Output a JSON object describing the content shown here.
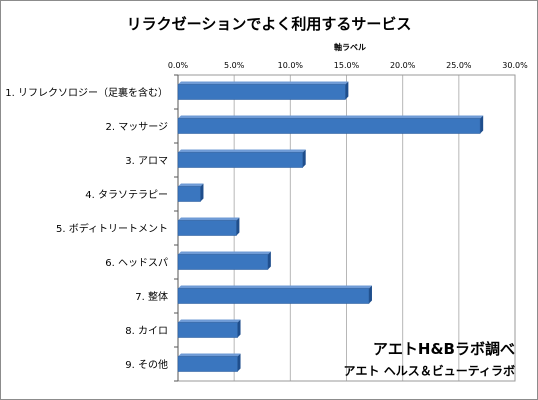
{
  "chart_data": {
    "type": "bar",
    "orientation": "horizontal",
    "title": "リラクゼーションでよく利用するサービス",
    "xlabel": "軸ラベル",
    "ylabel": "",
    "xlim": [
      0,
      30
    ],
    "x_ticks": [
      0,
      5,
      10,
      15,
      20,
      25,
      30
    ],
    "tick_labels": [
      "0.0%",
      "5.0%",
      "10.0%",
      "15.0%",
      "20.0%",
      "25.0%",
      "30.0%"
    ],
    "tick_position": "top",
    "grid": true,
    "categories": [
      "1.  リフレクソロジー（足裏を含む）",
      "2.  マッサージ",
      "3.  アロマ",
      "4.  タラソテラピー",
      "5.  ボディトリートメント",
      "6.  ヘッドスパ",
      "7.  整体",
      "8.  カイロ",
      "9.  その他"
    ],
    "values": [
      14.9,
      26.9,
      11.1,
      2.0,
      5.2,
      8.0,
      17.0,
      5.3,
      5.3
    ],
    "bar_color": "#3a76bf",
    "bar_shade_color": "#1f4e8c",
    "grid_color": "#b7b7b7"
  },
  "credit": {
    "main": "アエトH&Bラボ調べ",
    "sub": "アエト ヘルス＆ビューティラボ"
  }
}
